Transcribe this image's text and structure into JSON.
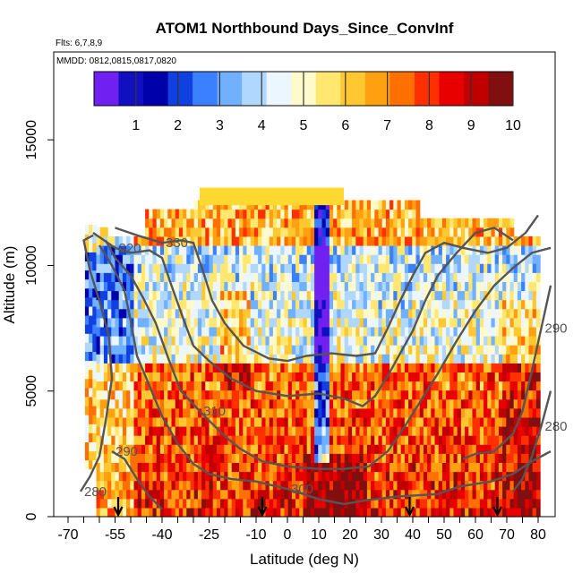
{
  "chart_data": {
    "type": "heatmap",
    "title": "ATOM1 Northbound Days_Since_ConvInf",
    "subtitle_flights": "Flts: 6,7,8,9",
    "subtitle_dates": "MMDD: 0812,0815,0817,0820",
    "xlabel": "Latitude (deg N)",
    "ylabel": "Altitude (m)",
    "xlim": [
      -72,
      84
    ],
    "ylim": [
      0,
      18500
    ],
    "x_ticks": [
      -70,
      -55,
      -40,
      -25,
      -10,
      0,
      10,
      20,
      30,
      40,
      50,
      60,
      70,
      80
    ],
    "y_ticks": [
      0,
      5000,
      10000,
      15000
    ],
    "colorbar": {
      "ticks": [
        1,
        2,
        3,
        4,
        5,
        6,
        7,
        8,
        9,
        10
      ],
      "range": [
        0,
        10
      ],
      "colors": [
        "#7020f0",
        "#1010c0",
        "#0000aa",
        "#1040e0",
        "#3a80ff",
        "#70b0ff",
        "#b0d8ff",
        "#ecf6ff",
        "#fffacc",
        "#ffe770",
        "#ffc830",
        "#ffa010",
        "#ff7000",
        "#ff3000",
        "#e80000",
        "#c00000",
        "#801010"
      ]
    },
    "flight_marker_latitudes": [
      -54,
      -8,
      39,
      67
    ],
    "contours": [
      {
        "label": "280",
        "points": [
          [
            -66,
            1000
          ],
          [
            -63,
            1600
          ],
          [
            -60,
            2400
          ],
          [
            -58,
            3800
          ],
          [
            -56,
            5500
          ],
          [
            -57,
            7200
          ],
          [
            -60,
            8600
          ],
          [
            -63,
            9800
          ],
          [
            -65,
            11000
          ],
          [
            -62,
            11200
          ]
        ]
      },
      {
        "label": "290",
        "points": [
          [
            -56,
            2600
          ],
          [
            -52,
            2300
          ],
          [
            -48,
            1500
          ],
          [
            -44,
            800
          ],
          [
            -40,
            300
          ]
        ]
      },
      {
        "label": "290",
        "points": [
          [
            84,
            9200
          ],
          [
            81,
            7500
          ],
          [
            78,
            5800
          ],
          [
            75,
            4200
          ],
          [
            72,
            3300
          ],
          [
            66,
            2600
          ],
          [
            60,
            2500
          ],
          [
            56,
            2300
          ]
        ]
      },
      {
        "label": "280",
        "points": [
          [
            84,
            5000
          ],
          [
            81,
            3600
          ],
          [
            78,
            2400
          ],
          [
            75,
            1500
          ],
          [
            72,
            1000
          ]
        ]
      },
      {
        "label": "300",
        "points": [
          [
            -60,
            10800
          ],
          [
            -56,
            10000
          ],
          [
            -52,
            9000
          ],
          [
            -50,
            7800
          ],
          [
            -48,
            6400
          ],
          [
            -44,
            5200
          ],
          [
            -40,
            4000
          ],
          [
            -35,
            2900
          ],
          [
            -30,
            2100
          ],
          [
            -25,
            1700
          ],
          [
            -18,
            1500
          ],
          [
            -10,
            1400
          ],
          [
            0,
            1100
          ],
          [
            10,
            700
          ],
          [
            18,
            500
          ],
          [
            25,
            650
          ],
          [
            35,
            800
          ],
          [
            48,
            900
          ],
          [
            55,
            1200
          ],
          [
            65,
            1400
          ],
          [
            72,
            1700
          ],
          [
            78,
            2200
          ],
          [
            84,
            2600
          ]
        ]
      },
      {
        "label": "310",
        "points": [
          [
            -58,
            11000
          ],
          [
            -55,
            10300
          ],
          [
            -50,
            9600
          ],
          [
            -46,
            8700
          ],
          [
            -42,
            7700
          ],
          [
            -38,
            6300
          ],
          [
            -34,
            5000
          ],
          [
            -28,
            4200
          ],
          [
            -20,
            3200
          ],
          [
            -15,
            2700
          ],
          [
            -8,
            2200
          ],
          [
            0,
            2000
          ],
          [
            10,
            1900
          ],
          [
            18,
            1900
          ],
          [
            26,
            2000
          ],
          [
            32,
            2600
          ],
          [
            37,
            3500
          ],
          [
            42,
            4500
          ],
          [
            48,
            5700
          ],
          [
            54,
            7000
          ],
          [
            60,
            8200
          ],
          [
            66,
            9200
          ],
          [
            72,
            9900
          ],
          [
            78,
            10500
          ],
          [
            84,
            10700
          ]
        ]
      },
      {
        "label": "320",
        "points": [
          [
            -62,
            11300
          ],
          [
            -55,
            10700
          ],
          [
            -50,
            10500
          ],
          [
            -44,
            10600
          ],
          [
            -40,
            10300
          ],
          [
            -37,
            9200
          ],
          [
            -33,
            7800
          ],
          [
            -30,
            6800
          ],
          [
            -25,
            6200
          ],
          [
            -18,
            5500
          ],
          [
            -10,
            5000
          ],
          [
            0,
            4800
          ],
          [
            10,
            4900
          ],
          [
            18,
            4700
          ],
          [
            24,
            4400
          ],
          [
            28,
            4800
          ],
          [
            32,
            5600
          ],
          [
            36,
            6500
          ],
          [
            40,
            7400
          ],
          [
            44,
            8600
          ],
          [
            48,
            9600
          ],
          [
            54,
            10500
          ],
          [
            60,
            11300
          ],
          [
            66,
            11500
          ],
          [
            72,
            11000
          ]
        ]
      },
      {
        "label": "330",
        "points": [
          [
            -55,
            11500
          ],
          [
            -48,
            11200
          ],
          [
            -40,
            10900
          ],
          [
            -34,
            11000
          ],
          [
            -30,
            10900
          ],
          [
            -27,
            9800
          ],
          [
            -24,
            8600
          ],
          [
            -20,
            7700
          ],
          [
            -14,
            6800
          ],
          [
            -6,
            6300
          ],
          [
            0,
            6200
          ],
          [
            6,
            6400
          ],
          [
            14,
            6500
          ],
          [
            22,
            6400
          ],
          [
            28,
            6500
          ],
          [
            32,
            7500
          ],
          [
            36,
            8600
          ],
          [
            40,
            9600
          ],
          [
            44,
            10500
          ],
          [
            50,
            10900
          ],
          [
            56,
            10700
          ],
          [
            64,
            10500
          ],
          [
            70,
            10700
          ],
          [
            76,
            11300
          ],
          [
            80,
            12000
          ]
        ]
      }
    ]
  }
}
